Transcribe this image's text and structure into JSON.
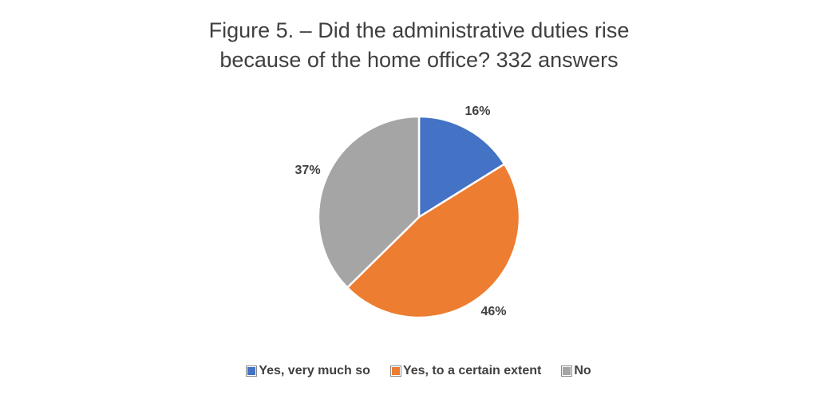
{
  "chart_data": {
    "type": "pie",
    "title": "Figure 5. – Did the administrative duties rise because of the home office? 332 answers",
    "categories": [
      "Yes, very much so",
      "Yes, to a certain extent",
      "No"
    ],
    "values": [
      16,
      46,
      37
    ],
    "value_labels": [
      "16%",
      "46%",
      "37%"
    ],
    "colors": [
      "#4472c4",
      "#ed7d31",
      "#a5a5a5"
    ]
  }
}
